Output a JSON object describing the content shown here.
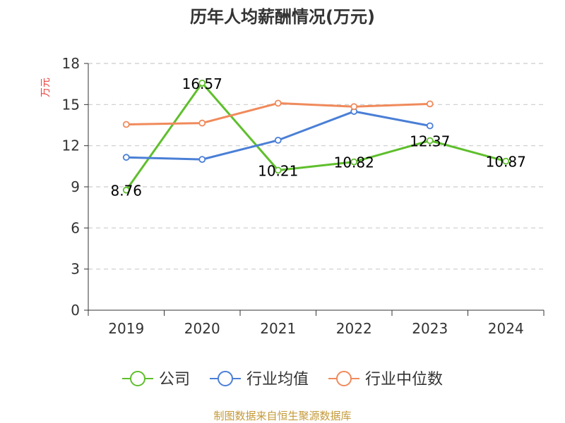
{
  "chart_data": {
    "type": "line",
    "title": "历年人均薪酬情况(万元)",
    "ylabel": "万元",
    "xlabel": "",
    "categories": [
      "2019",
      "2020",
      "2021",
      "2022",
      "2023",
      "2024"
    ],
    "ylim": [
      0,
      18
    ],
    "yticks": [
      0,
      3,
      6,
      9,
      12,
      15,
      18
    ],
    "grid": true,
    "legend_position": "bottom",
    "series": [
      {
        "name": "公司",
        "color": "#5fbf2d",
        "values": [
          8.76,
          16.57,
          10.21,
          10.82,
          12.37,
          10.87
        ],
        "labels": [
          "8.76",
          "16.57",
          "10.21",
          "10.82",
          "12.37",
          "10.87"
        ]
      },
      {
        "name": "行业均值",
        "color": "#4a7fd6",
        "values": [
          11.15,
          11.0,
          12.4,
          14.5,
          13.45,
          null
        ]
      },
      {
        "name": "行业中位数",
        "color": "#f08a5b",
        "values": [
          13.55,
          13.65,
          15.1,
          14.85,
          15.05,
          null
        ]
      }
    ]
  },
  "source": "制图数据来自恒生聚源数据库"
}
